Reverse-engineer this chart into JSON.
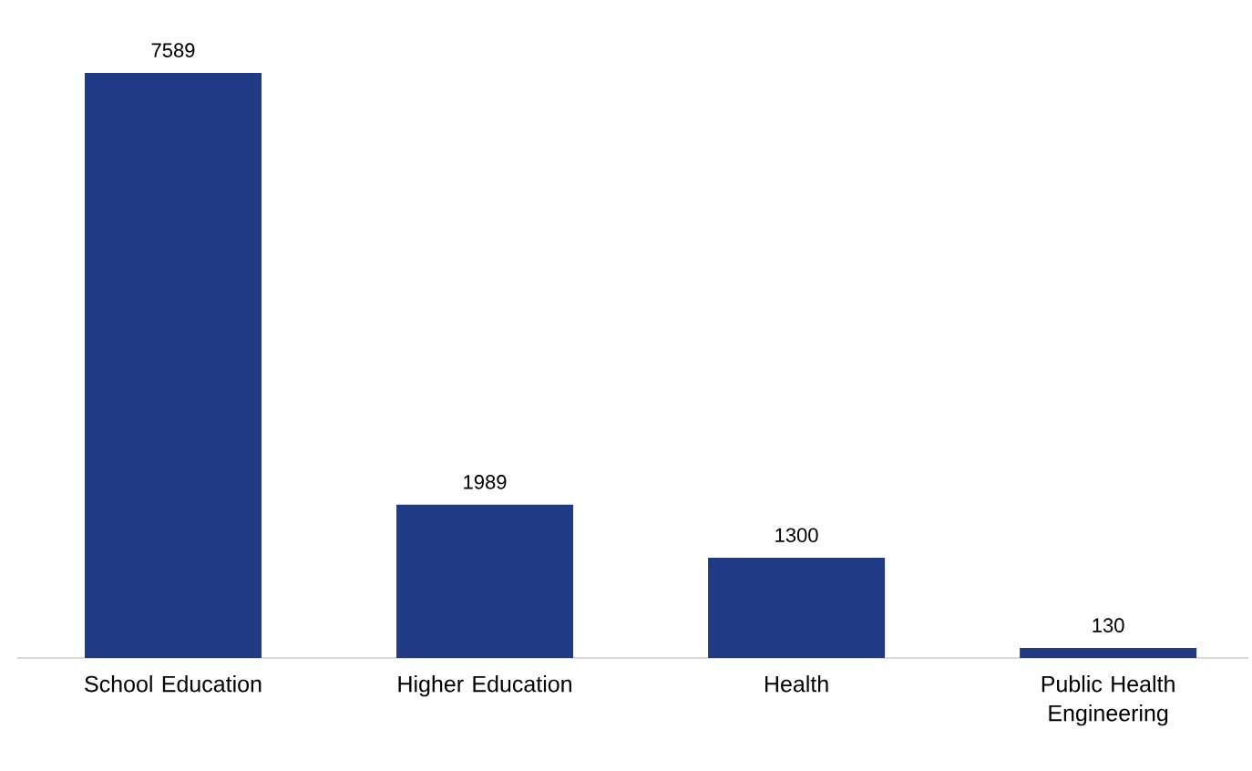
{
  "chart_data": {
    "type": "bar",
    "categories": [
      "School Education",
      "Higher Education",
      "Health",
      "Public Health Engineering"
    ],
    "values": [
      7589,
      1989,
      1300,
      130
    ],
    "color": "#203a86",
    "data_labels": true
  }
}
